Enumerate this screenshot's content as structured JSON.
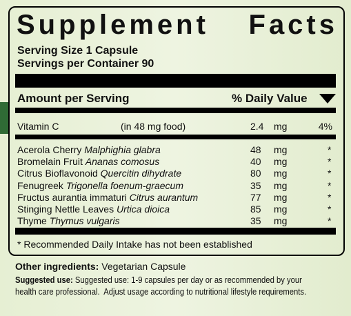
{
  "title": "Supplement Facts",
  "serving_size": "Serving Size 1 Capsule",
  "servings_per_container": "Servings per Container 90",
  "header": {
    "amount": "Amount per Serving",
    "daily_value": "% Daily Value"
  },
  "vitamin": {
    "name": "Vitamin C",
    "note": "(in 48 mg food)",
    "amount": "2.4",
    "unit": "mg",
    "dv": "4%"
  },
  "ingredients": [
    {
      "common": "Acerola Cherry",
      "latin": "Malphighia glabra",
      "amount": "48",
      "unit": "mg",
      "dv": "*"
    },
    {
      "common": "Bromelain Fruit",
      "latin": "Ananas comosus",
      "amount": "40",
      "unit": "mg",
      "dv": "*"
    },
    {
      "common": "Citrus Bioflavonoid",
      "latin": "Quercitin dihydrate",
      "amount": "80",
      "unit": "mg",
      "dv": "*"
    },
    {
      "common": "Fenugreek",
      "latin": "Trigonella foenum-graecum",
      "amount": "35",
      "unit": "mg",
      "dv": "*"
    },
    {
      "common": "Fructus aurantia immaturi",
      "latin": "Citrus aurantum",
      "amount": "77",
      "unit": "mg",
      "dv": "*"
    },
    {
      "common": "Stinging Nettle Leaves",
      "latin": "Urtica dioica",
      "amount": "85",
      "unit": "mg",
      "dv": "*"
    },
    {
      "common": "Thyme",
      "latin": "Thymus vulgaris",
      "amount": "35",
      "unit": "mg",
      "dv": "*"
    }
  ],
  "footnote": "* Recommended Daily Intake has not been established",
  "other_ingredients": {
    "label": "Other ingredients:",
    "text": "Vegetarian Capsule"
  },
  "suggested_use": {
    "label": "Suggested use:",
    "text": "Suggested use: 1-9 capsules per day or as recommended by your health care professional.  Adjust usage according to nutritional lifestyle requirements."
  }
}
